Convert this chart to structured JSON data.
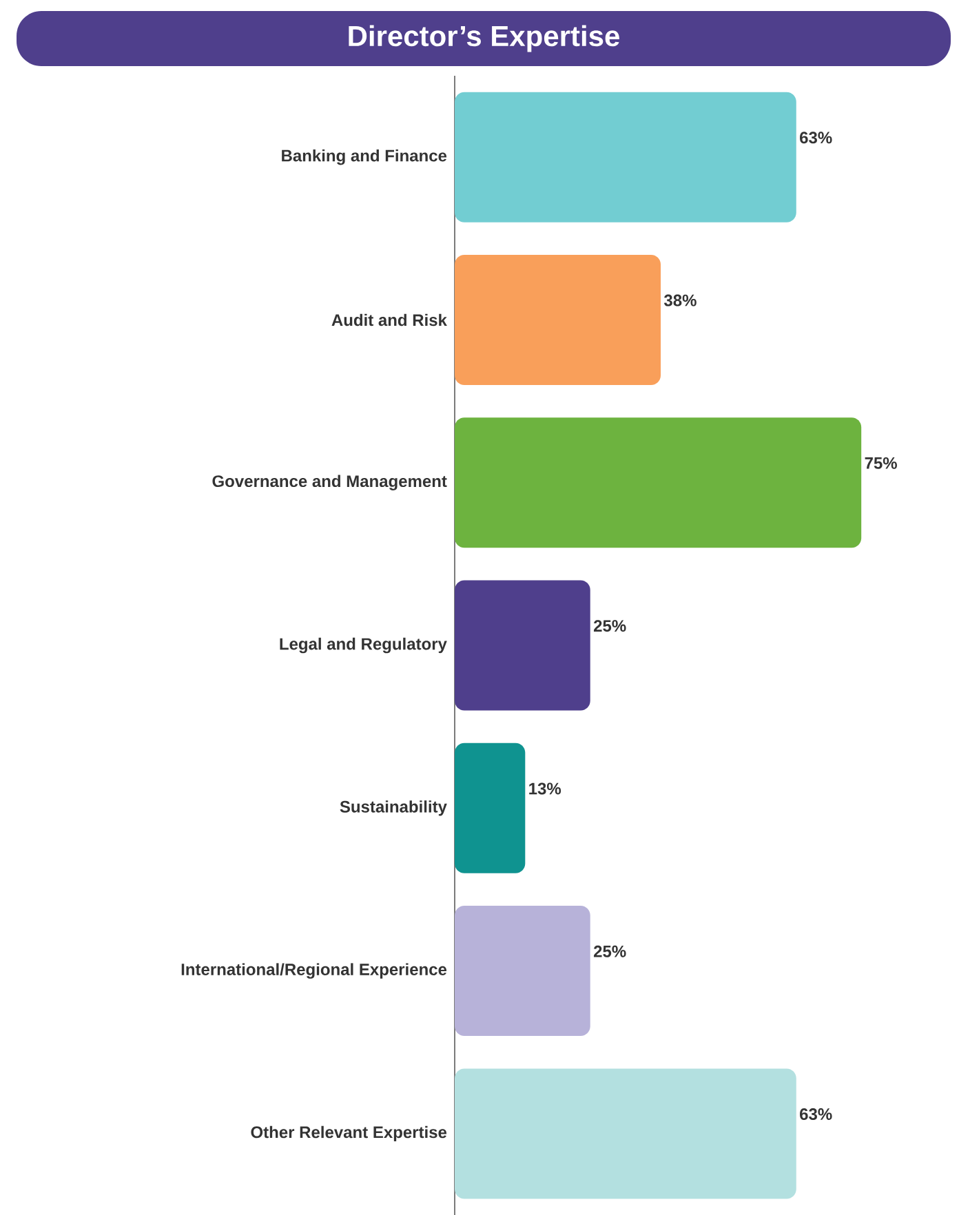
{
  "chart_data": {
    "type": "bar",
    "orientation": "horizontal",
    "title": "Director’s Expertise",
    "categories": [
      "Banking and Finance",
      "Audit and Risk",
      "Governance and Management",
      "Legal and Regulatory",
      "Sustainability",
      "International/Regional Experience",
      "Other Relevant Expertise"
    ],
    "values": [
      63,
      38,
      75,
      25,
      13,
      25,
      63
    ],
    "colors": [
      "#72cdd2",
      "#f99f5a",
      "#6db33f",
      "#4f3f8c",
      "#0f9390",
      "#b7b2d9",
      "#b3e0e0"
    ],
    "value_labels": [
      "63%",
      "38%",
      "75%",
      "25%",
      "13%",
      "25%",
      "63%"
    ]
  }
}
